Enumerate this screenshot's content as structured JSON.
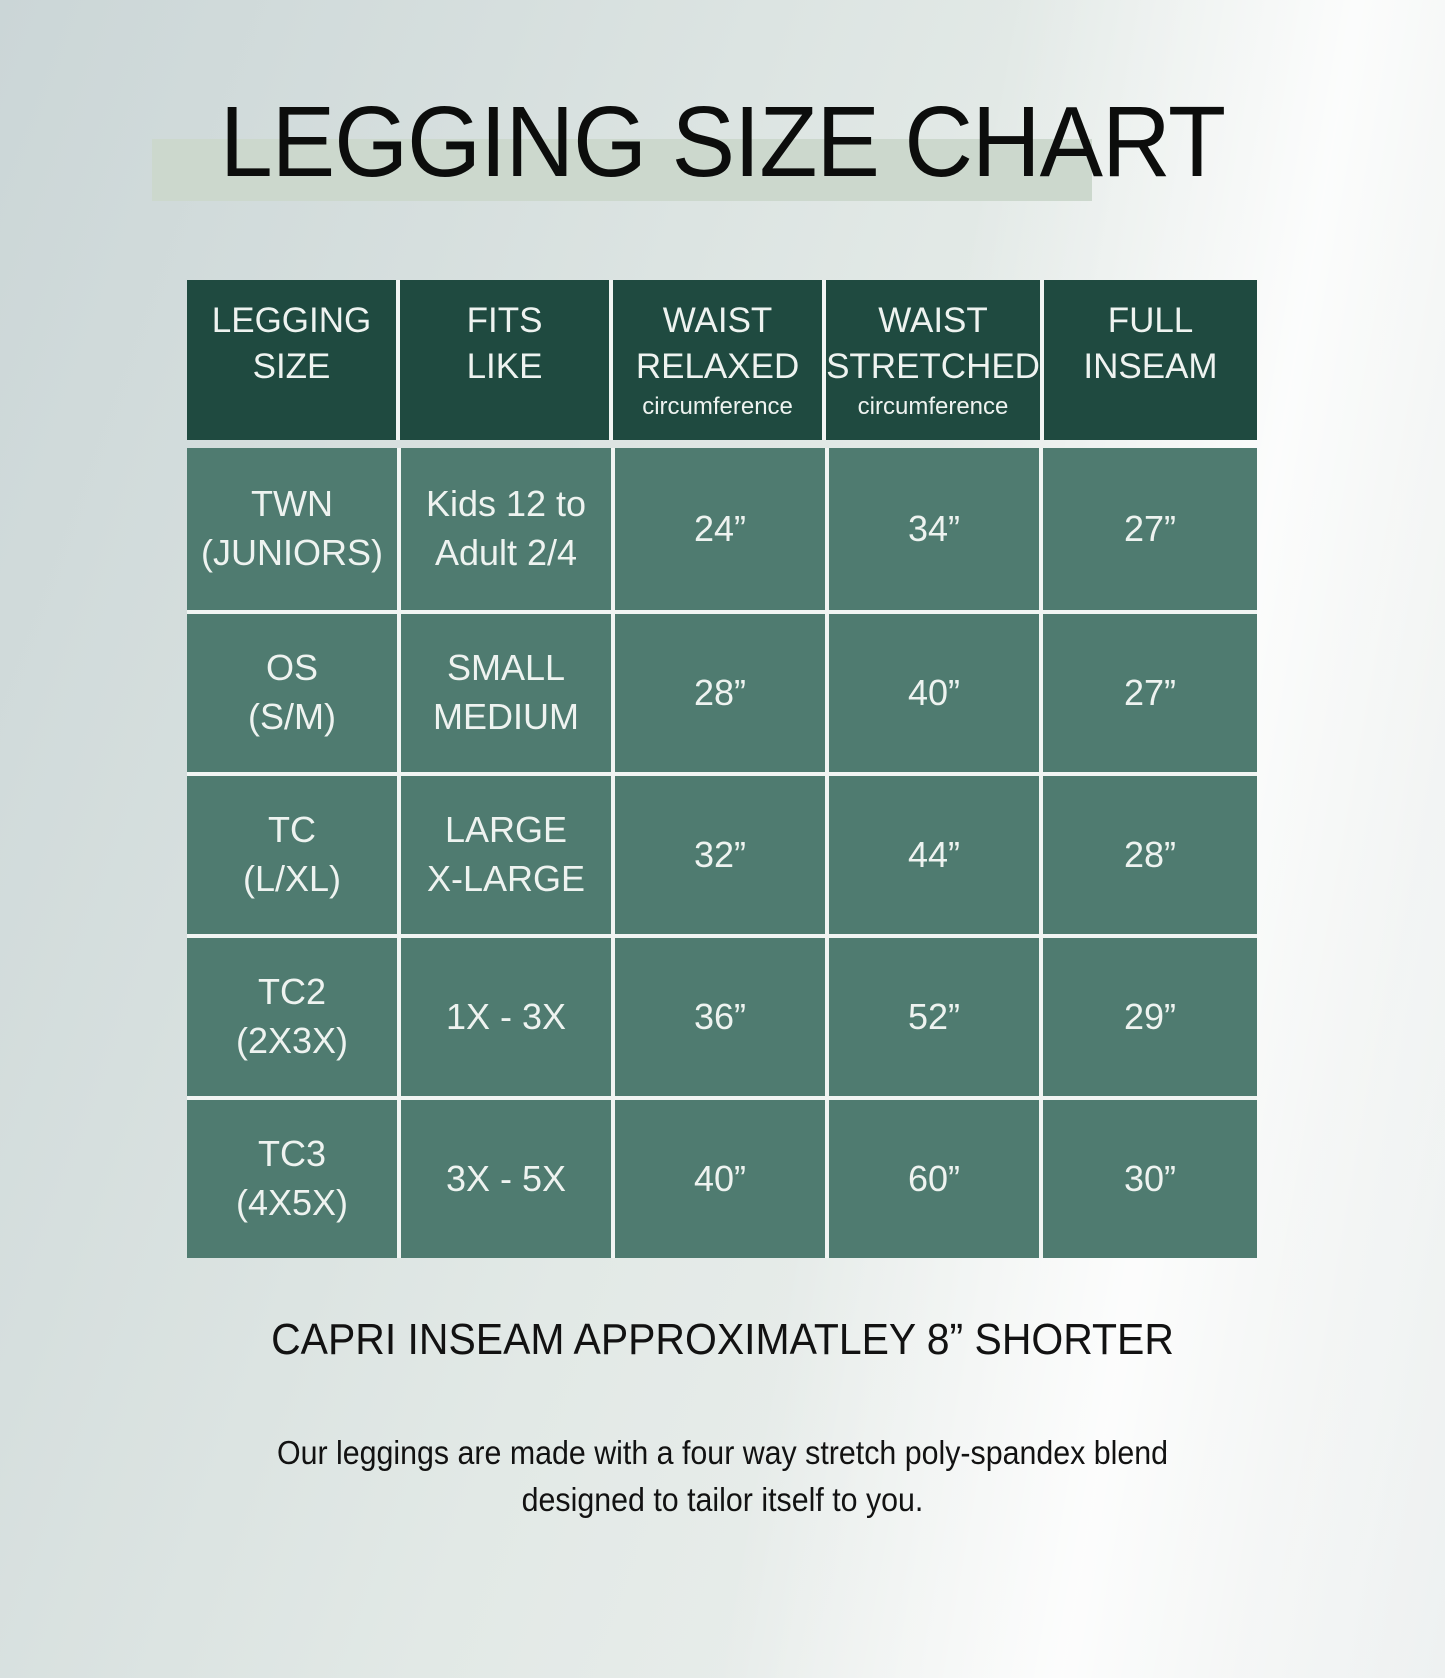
{
  "colors": {
    "header-bg": "#1f4a40",
    "cell-bg": "#4f7b70",
    "divider": "#f1f5f3",
    "band": "#ccd8cd",
    "title-text": "#0c0d0c",
    "cell-text": "#eef3f0",
    "note-text": "#121212"
  },
  "title": "LEGGING SIZE CHART",
  "table": {
    "header": [
      {
        "line1": "LEGGING",
        "line2": "SIZE",
        "sub": ""
      },
      {
        "line1": "FITS",
        "line2": "LIKE",
        "sub": ""
      },
      {
        "line1": "WAIST",
        "line2": "RELAXED",
        "sub": "circumference"
      },
      {
        "line1": "WAIST",
        "line2": "STRETCHED",
        "sub": "circumference"
      },
      {
        "line1": "FULL",
        "line2": "INSEAM",
        "sub": ""
      }
    ],
    "rows": [
      {
        "cells": [
          {
            "line1": "TWN",
            "line2": "(JUNIORS)"
          },
          {
            "line1": "Kids 12 to",
            "line2": "Adult 2/4"
          },
          {
            "line1": "24”",
            "line2": ""
          },
          {
            "line1": "34”",
            "line2": ""
          },
          {
            "line1": "27”",
            "line2": ""
          }
        ]
      },
      {
        "cells": [
          {
            "line1": "OS",
            "line2": "(S/M)"
          },
          {
            "line1": "SMALL",
            "line2": "MEDIUM"
          },
          {
            "line1": "28”",
            "line2": ""
          },
          {
            "line1": "40”",
            "line2": ""
          },
          {
            "line1": "27”",
            "line2": ""
          }
        ]
      },
      {
        "cells": [
          {
            "line1": "TC",
            "line2": "(L/XL)"
          },
          {
            "line1": "LARGE",
            "line2": "X-LARGE"
          },
          {
            "line1": "32”",
            "line2": ""
          },
          {
            "line1": "44”",
            "line2": ""
          },
          {
            "line1": "28”",
            "line2": ""
          }
        ]
      },
      {
        "cells": [
          {
            "line1": "TC2",
            "line2": "(2X3X)"
          },
          {
            "line1": "1X - 3X",
            "line2": ""
          },
          {
            "line1": "36”",
            "line2": ""
          },
          {
            "line1": "52”",
            "line2": ""
          },
          {
            "line1": "29”",
            "line2": ""
          }
        ]
      },
      {
        "cells": [
          {
            "line1": "TC3",
            "line2": "(4X5X)"
          },
          {
            "line1": "3X - 5X",
            "line2": ""
          },
          {
            "line1": "40”",
            "line2": ""
          },
          {
            "line1": "60”",
            "line2": ""
          },
          {
            "line1": "30”",
            "line2": ""
          }
        ]
      }
    ]
  },
  "notes": {
    "capri": "CAPRI INSEAM APPROXIMATLEY 8” SHORTER",
    "description_line1": "Our leggings are made with a four way stretch poly-spandex blend",
    "description_line2": "designed to tailor itself to you."
  },
  "chart_data": {
    "type": "table",
    "title": "LEGGING SIZE CHART",
    "columns": [
      "LEGGING SIZE",
      "FITS LIKE",
      "WAIST RELAXED circumference",
      "WAIST STRETCHED circumference",
      "FULL INSEAM"
    ],
    "rows": [
      [
        "TWN (JUNIORS)",
        "Kids 12 to Adult 2/4",
        "24”",
        "34”",
        "27”"
      ],
      [
        "OS (S/M)",
        "SMALL MEDIUM",
        "28”",
        "40”",
        "27”"
      ],
      [
        "TC (L/XL)",
        "LARGE X-LARGE",
        "32”",
        "44”",
        "28”"
      ],
      [
        "TC2 (2X3X)",
        "1X - 3X",
        "36”",
        "52”",
        "29”"
      ],
      [
        "TC3 (4X5X)",
        "3X - 5X",
        "40”",
        "60”",
        "30”"
      ]
    ],
    "notes": [
      "CAPRI INSEAM APPROXIMATLEY 8” SHORTER",
      "Our leggings are made with a four way stretch poly-spandex blend designed to tailor itself to you."
    ]
  }
}
